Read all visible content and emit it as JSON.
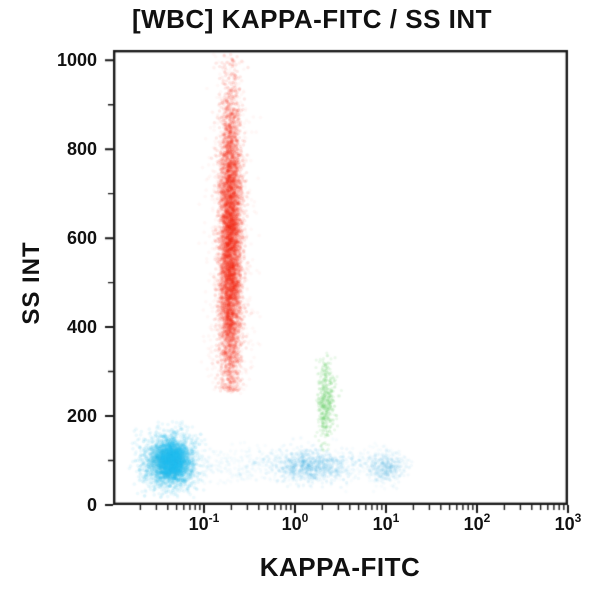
{
  "chart_data": {
    "type": "scatter",
    "title": "[WBC] KAPPA-FITC / SS INT",
    "xlabel": "KAPPA-FITC",
    "ylabel": "SS INT",
    "x_scale": "log10",
    "x_range_log10": [
      -2,
      3
    ],
    "x_tick_base": "10",
    "x_tick_exponents": [
      -1,
      0,
      1,
      2,
      3
    ],
    "x_minor_tick_multiples": [
      2,
      3,
      4,
      5,
      6,
      7,
      8,
      9
    ],
    "y_range": [
      0,
      1023
    ],
    "y_ticks": [
      0,
      200,
      400,
      600,
      800,
      1000
    ],
    "y_minor_tick_step": 100,
    "grid": false,
    "legend": false,
    "background_color": "#ffffff",
    "frame_color": "#1a1a1a",
    "text_color": "#111111",
    "populations": [
      {
        "name": "high-ss-red-cloud",
        "color": "#f62718",
        "n": 5200,
        "x_dist": "normal",
        "x_log_mean": -0.71,
        "x_log_sd": 0.06,
        "y_mean": 580,
        "y_sd": 175,
        "y_min": 255,
        "y_max": 1015,
        "alpha": 0.1,
        "radius": 1.7
      },
      {
        "name": "high-ss-red-halo",
        "color": "#f84030",
        "n": 1400,
        "x_dist": "normal",
        "x_log_mean": -0.71,
        "x_log_sd": 0.11,
        "y_mean": 540,
        "y_sd": 215,
        "y_min": 250,
        "y_max": 1015,
        "alpha": 0.04,
        "radius": 1.8
      },
      {
        "name": "kappa-positive-green",
        "color": "#58cd58",
        "n": 430,
        "x_dist": "normal",
        "x_log_mean": 0.34,
        "x_log_sd": 0.05,
        "y_mean": 235,
        "y_sd": 50,
        "y_min": 120,
        "y_max": 345,
        "alpha": 0.12,
        "radius": 1.6
      },
      {
        "name": "low-ss-cyan-blob",
        "color": "#2bc0ea",
        "n": 2400,
        "x_dist": "normal",
        "x_log_mean": -1.38,
        "x_log_sd": 0.14,
        "y_mean": 98,
        "y_sd": 30,
        "y_min": 15,
        "y_max": 190,
        "alpha": 0.09,
        "radius": 1.8
      },
      {
        "name": "low-ss-cyan-core",
        "color": "#25c2f0",
        "n": 1000,
        "x_dist": "normal",
        "x_log_mean": -1.34,
        "x_log_sd": 0.08,
        "y_mean": 100,
        "y_sd": 21,
        "y_min": 25,
        "y_max": 175,
        "alpha": 0.16,
        "radius": 1.8
      },
      {
        "name": "blue-band-spread",
        "color": "#49b8e8",
        "n": 750,
        "x_dist": "uniform",
        "x_log_min": -1.7,
        "x_log_max": 1.12,
        "y_mean": 90,
        "y_sd": 21,
        "y_min": 20,
        "y_max": 170,
        "alpha": 0.045,
        "radius": 1.7
      },
      {
        "name": "blue-band-cluster-1",
        "color": "#3fb2e6",
        "n": 720,
        "x_dist": "normal",
        "x_log_mean": 0.16,
        "x_log_sd": 0.21,
        "y_mean": 88,
        "y_sd": 18,
        "y_min": 20,
        "y_max": 160,
        "alpha": 0.08,
        "radius": 1.7
      },
      {
        "name": "blue-band-cluster-2",
        "color": "#52bfe9",
        "n": 330,
        "x_dist": "normal",
        "x_log_mean": 1.0,
        "x_log_sd": 0.11,
        "y_mean": 86,
        "y_sd": 16,
        "y_min": 25,
        "y_max": 150,
        "alpha": 0.07,
        "radius": 1.7
      }
    ]
  }
}
